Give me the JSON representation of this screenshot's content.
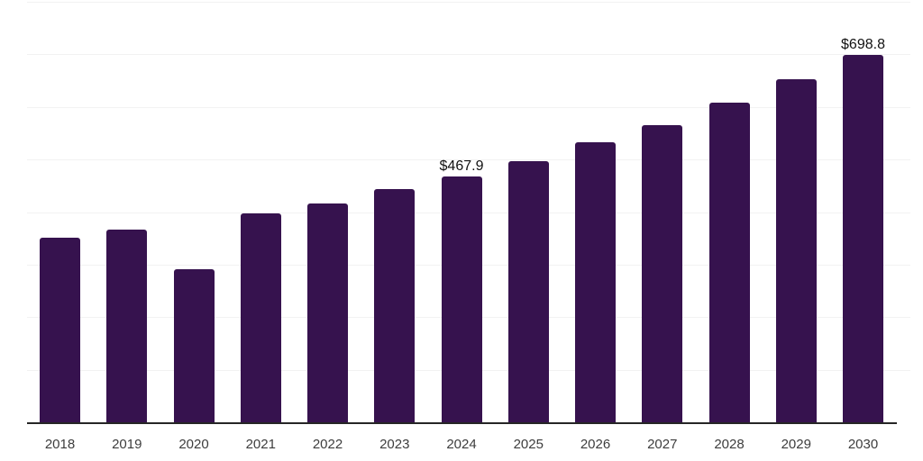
{
  "chart_data": {
    "type": "bar",
    "title": "",
    "xlabel": "",
    "ylabel": "",
    "categories": [
      "2018",
      "2019",
      "2020",
      "2021",
      "2022",
      "2023",
      "2024",
      "2025",
      "2026",
      "2027",
      "2028",
      "2029",
      "2030"
    ],
    "values": [
      352,
      366,
      292,
      397,
      417,
      443,
      467.9,
      497,
      532,
      566,
      608,
      653,
      698.8
    ],
    "data_labels": [
      "",
      "",
      "",
      "",
      "",
      "",
      "$467.9",
      "",
      "",
      "",
      "",
      "",
      "$698.8"
    ],
    "ylim": [
      0,
      800
    ],
    "gridline_step": 100,
    "grid": true,
    "legend_position": "none",
    "colors": {
      "bar": "#36124E",
      "axis_line": "#262626",
      "gridline": "#f2f2f2",
      "tick_label": "#3d3d3d",
      "data_label": "#121212",
      "background": "#ffffff"
    }
  }
}
